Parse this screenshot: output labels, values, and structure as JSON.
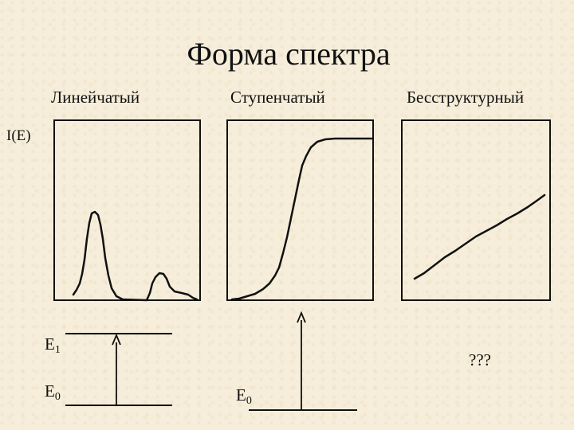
{
  "title": "Форма спектра",
  "y_axis_label": "I(E)",
  "spectra": [
    {
      "label": "Линейчатый"
    },
    {
      "label": "Ступенчатый"
    },
    {
      "label": "Бесструктурный"
    }
  ],
  "levels": {
    "e1": {
      "base": "E",
      "sub": "1"
    },
    "e0": {
      "base": "E",
      "sub": "0"
    }
  },
  "unknown_text": "???"
}
